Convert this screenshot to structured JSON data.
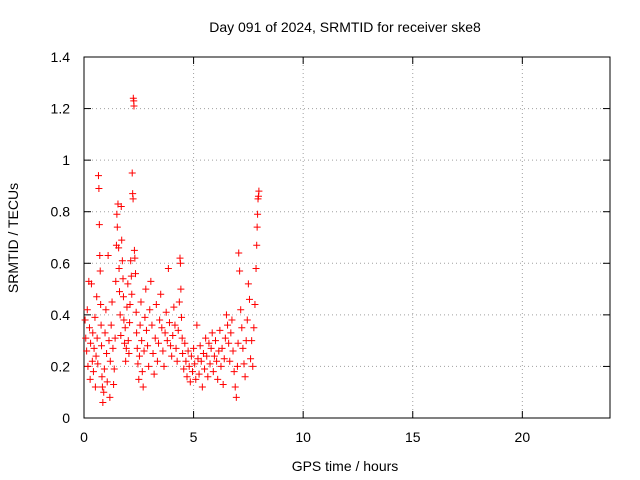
{
  "chart_data": {
    "type": "scatter",
    "title": "Day 091 of 2024, SRMTID for receiver ske8",
    "xlabel": "GPS time / hours",
    "ylabel": "SRMTID / TECUs",
    "xlim": [
      0,
      24
    ],
    "ylim": [
      0,
      1.4
    ],
    "xticks": [
      0,
      5,
      10,
      15,
      20
    ],
    "xtick_labels": [
      "0",
      "5",
      "10",
      "15",
      "20"
    ],
    "yticks": [
      0,
      0.2,
      0.4,
      0.6,
      0.8,
      1.0,
      1.2,
      1.4
    ],
    "ytick_labels": [
      "0",
      "0.2",
      "0.4",
      "0.6",
      "0.8",
      "1",
      "1.2",
      "1.4"
    ],
    "grid": true,
    "marker": "plus",
    "color": "#ff0000",
    "series": [
      {
        "name": "SRMTID",
        "points": [
          [
            0.05,
            0.38
          ],
          [
            0.08,
            0.31
          ],
          [
            0.12,
            0.26
          ],
          [
            0.15,
            0.42
          ],
          [
            0.18,
            0.2
          ],
          [
            0.22,
            0.53
          ],
          [
            0.25,
            0.35
          ],
          [
            0.28,
            0.15
          ],
          [
            0.3,
            0.29
          ],
          [
            0.34,
            0.52
          ],
          [
            0.38,
            0.22
          ],
          [
            0.4,
            0.33
          ],
          [
            0.43,
            0.18
          ],
          [
            0.46,
            0.27
          ],
          [
            0.5,
            0.39
          ],
          [
            0.52,
            0.12
          ],
          [
            0.55,
            0.24
          ],
          [
            0.58,
            0.47
          ],
          [
            0.6,
            0.31
          ],
          [
            0.63,
            0.21
          ],
          [
            0.66,
            0.94
          ],
          [
            0.68,
            0.89
          ],
          [
            0.7,
            0.75
          ],
          [
            0.72,
            0.63
          ],
          [
            0.74,
            0.57
          ],
          [
            0.76,
            0.44
          ],
          [
            0.78,
            0.36
          ],
          [
            0.8,
            0.28
          ],
          [
            0.82,
            0.16
          ],
          [
            0.84,
            0.12
          ],
          [
            0.86,
            0.06
          ],
          [
            0.9,
            0.1
          ],
          [
            0.93,
            0.19
          ],
          [
            0.96,
            0.33
          ],
          [
            1.0,
            0.42
          ],
          [
            1.03,
            0.25
          ],
          [
            1.06,
            0.14
          ],
          [
            1.1,
            0.63
          ],
          [
            1.14,
            0.3
          ],
          [
            1.18,
            0.08
          ],
          [
            1.2,
            0.22
          ],
          [
            1.24,
            0.36
          ],
          [
            1.28,
            0.45
          ],
          [
            1.32,
            0.27
          ],
          [
            1.35,
            0.13
          ],
          [
            1.38,
            0.19
          ],
          [
            1.42,
            0.31
          ],
          [
            1.45,
            0.53
          ],
          [
            1.48,
            0.67
          ],
          [
            1.5,
            0.79
          ],
          [
            1.52,
            0.74
          ],
          [
            1.55,
            0.83
          ],
          [
            1.58,
            0.66
          ],
          [
            1.6,
            0.58
          ],
          [
            1.62,
            0.49
          ],
          [
            1.65,
            0.4
          ],
          [
            1.68,
            0.32
          ],
          [
            1.7,
            0.82
          ],
          [
            1.72,
            0.69
          ],
          [
            1.75,
            0.61
          ],
          [
            1.78,
            0.54
          ],
          [
            1.8,
            0.47
          ],
          [
            1.82,
            0.38
          ],
          [
            1.85,
            0.29
          ],
          [
            1.88,
            0.35
          ],
          [
            1.9,
            0.22
          ],
          [
            1.93,
            0.27
          ],
          [
            1.96,
            0.43
          ],
          [
            2.0,
            0.52
          ],
          [
            2.02,
            0.3
          ],
          [
            2.05,
            0.25
          ],
          [
            2.08,
            0.37
          ],
          [
            2.1,
            0.44
          ],
          [
            2.13,
            0.61
          ],
          [
            2.16,
            0.55
          ],
          [
            2.18,
            0.48
          ],
          [
            2.2,
            0.95
          ],
          [
            2.22,
            0.87
          ],
          [
            2.24,
            0.85
          ],
          [
            2.25,
            1.24
          ],
          [
            2.27,
            1.23
          ],
          [
            2.28,
            1.21
          ],
          [
            2.3,
            0.65
          ],
          [
            2.32,
            0.62
          ],
          [
            2.35,
            0.56
          ],
          [
            2.38,
            0.41
          ],
          [
            2.4,
            0.33
          ],
          [
            2.43,
            0.27
          ],
          [
            2.46,
            0.21
          ],
          [
            2.5,
            0.15
          ],
          [
            2.53,
            0.24
          ],
          [
            2.56,
            0.36
          ],
          [
            2.6,
            0.45
          ],
          [
            2.63,
            0.3
          ],
          [
            2.66,
            0.18
          ],
          [
            2.7,
            0.12
          ],
          [
            2.74,
            0.26
          ],
          [
            2.78,
            0.39
          ],
          [
            2.82,
            0.5
          ],
          [
            2.85,
            0.34
          ],
          [
            2.9,
            0.28
          ],
          [
            2.95,
            0.2
          ],
          [
            3.0,
            0.42
          ],
          [
            3.05,
            0.53
          ],
          [
            3.1,
            0.36
          ],
          [
            3.15,
            0.25
          ],
          [
            3.2,
            0.17
          ],
          [
            3.25,
            0.31
          ],
          [
            3.3,
            0.44
          ],
          [
            3.35,
            0.22
          ],
          [
            3.4,
            0.29
          ],
          [
            3.45,
            0.38
          ],
          [
            3.5,
            0.48
          ],
          [
            3.55,
            0.35
          ],
          [
            3.6,
            0.26
          ],
          [
            3.65,
            0.2
          ],
          [
            3.7,
            0.33
          ],
          [
            3.75,
            0.41
          ],
          [
            3.8,
            0.3
          ],
          [
            3.85,
            0.58
          ],
          [
            3.9,
            0.37
          ],
          [
            3.95,
            0.28
          ],
          [
            4.0,
            0.24
          ],
          [
            4.05,
            0.32
          ],
          [
            4.1,
            0.43
          ],
          [
            4.15,
            0.36
          ],
          [
            4.2,
            0.27
          ],
          [
            4.25,
            0.22
          ],
          [
            4.3,
            0.34
          ],
          [
            4.35,
            0.45
          ],
          [
            4.38,
            0.62
          ],
          [
            4.4,
            0.6
          ],
          [
            4.42,
            0.5
          ],
          [
            4.45,
            0.39
          ],
          [
            4.48,
            0.31
          ],
          [
            4.5,
            0.25
          ],
          [
            4.55,
            0.19
          ],
          [
            4.6,
            0.29
          ],
          [
            4.65,
            0.22
          ],
          [
            4.7,
            0.16
          ],
          [
            4.75,
            0.26
          ],
          [
            4.8,
            0.2
          ],
          [
            4.85,
            0.14
          ],
          [
            4.9,
            0.24
          ],
          [
            4.95,
            0.18
          ],
          [
            5.0,
            0.27
          ],
          [
            5.05,
            0.21
          ],
          [
            5.1,
            0.15
          ],
          [
            5.15,
            0.36
          ],
          [
            5.2,
            0.23
          ],
          [
            5.25,
            0.17
          ],
          [
            5.3,
            0.28
          ],
          [
            5.35,
            0.22
          ],
          [
            5.4,
            0.12
          ],
          [
            5.45,
            0.25
          ],
          [
            5.5,
            0.19
          ],
          [
            5.55,
            0.31
          ],
          [
            5.6,
            0.24
          ],
          [
            5.65,
            0.16
          ],
          [
            5.7,
            0.29
          ],
          [
            5.75,
            0.21
          ],
          [
            5.8,
            0.27
          ],
          [
            5.85,
            0.33
          ],
          [
            5.9,
            0.18
          ],
          [
            5.95,
            0.24
          ],
          [
            6.0,
            0.3
          ],
          [
            6.05,
            0.22
          ],
          [
            6.1,
            0.15
          ],
          [
            6.15,
            0.26
          ],
          [
            6.2,
            0.34
          ],
          [
            6.25,
            0.2
          ],
          [
            6.3,
            0.27
          ],
          [
            6.35,
            0.13
          ],
          [
            6.4,
            0.23
          ],
          [
            6.45,
            0.31
          ],
          [
            6.5,
            0.4
          ],
          [
            6.55,
            0.36
          ],
          [
            6.6,
            0.29
          ],
          [
            6.65,
            0.22
          ],
          [
            6.7,
            0.33
          ],
          [
            6.75,
            0.38
          ],
          [
            6.8,
            0.26
          ],
          [
            6.85,
            0.18
          ],
          [
            6.9,
            0.12
          ],
          [
            6.95,
            0.08
          ],
          [
            7.0,
            0.2
          ],
          [
            7.03,
            0.29
          ],
          [
            7.06,
            0.64
          ],
          [
            7.1,
            0.57
          ],
          [
            7.15,
            0.42
          ],
          [
            7.2,
            0.35
          ],
          [
            7.25,
            0.27
          ],
          [
            7.3,
            0.21
          ],
          [
            7.35,
            0.16
          ],
          [
            7.4,
            0.3
          ],
          [
            7.45,
            0.38
          ],
          [
            7.5,
            0.52
          ],
          [
            7.55,
            0.46
          ],
          [
            7.6,
            0.23
          ],
          [
            7.65,
            0.3
          ],
          [
            7.7,
            0.2
          ],
          [
            7.75,
            0.35
          ],
          [
            7.8,
            0.44
          ],
          [
            7.85,
            0.58
          ],
          [
            7.88,
            0.67
          ],
          [
            7.9,
            0.74
          ],
          [
            7.92,
            0.79
          ],
          [
            7.94,
            0.85
          ],
          [
            7.96,
            0.86
          ],
          [
            7.98,
            0.88
          ]
        ]
      }
    ]
  }
}
